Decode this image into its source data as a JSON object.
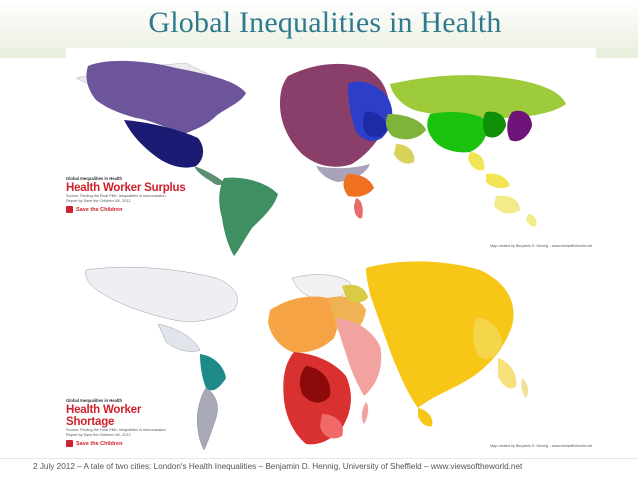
{
  "slide": {
    "title": "Global Inequalities in Health",
    "footer": "2 July 2012 – A tale of two cities: London's Health Inequalities – Benjamin D. Hennig, University of Sheffield – www.viewsoftheworld.net"
  },
  "map_top": {
    "kicker": "Global Inequalities in Health",
    "headline": "Health Worker Surplus",
    "source_lines": [
      "Source: Finding the Final Fifth: Inequalities in Immunisation",
      "Report by Save the Children UK, 2012"
    ],
    "org": "Save the Children",
    "credit_lines": [
      "Map created by Benjamin D. Hennig",
      "www.viewsoftheworld.net"
    ]
  },
  "map_bottom": {
    "kicker": "Global Inequalities in Health",
    "headline": "Health Worker Shortage",
    "source_lines": [
      "Source: Finding the Final Fifth: Inequalities in Immunisation",
      "Report by Save the Children UK, 2012"
    ],
    "org": "Save the Children",
    "credit_lines": [
      "Map created by Benjamin D. Hennig",
      "www.viewsoftheworld.net"
    ]
  },
  "colors": {
    "title": "#2f7a8c",
    "headline": "#d0212c",
    "north_america": "#6d559b",
    "usa_dark": "#1c1b74",
    "south_america": "#3f8f62",
    "europe": "#8a3e6a",
    "europe_blue": "#2d3fc8",
    "russia": "#9ecb3a",
    "china": "#1ac20f",
    "japan": "#6e1377",
    "southeast_asia": "#f1e455",
    "africa_top": "#ef7020",
    "madagascar_top": "#e86a6a",
    "south_asia": "#f7c617",
    "africa_bottom": "#d93030",
    "africa_dark": "#8c0a0a",
    "africa_pink": "#f2a3a0",
    "middle_east_bottom": "#f5a344"
  }
}
